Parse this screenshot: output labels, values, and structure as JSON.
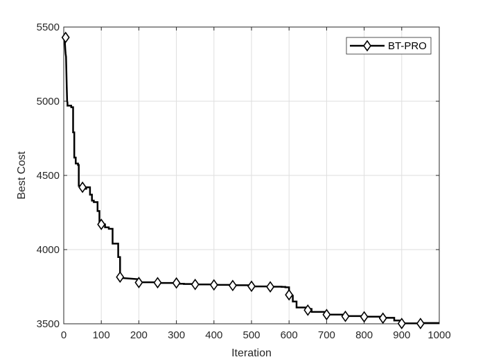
{
  "chart_data": {
    "type": "line",
    "title": "",
    "xlabel": "Iteration",
    "ylabel": "Best Cost",
    "xlim": [
      0,
      1000
    ],
    "ylim": [
      3500,
      5500
    ],
    "xticks": [
      0,
      100,
      200,
      300,
      400,
      500,
      600,
      700,
      800,
      900,
      1000
    ],
    "yticks": [
      3500,
      4000,
      4500,
      5000,
      5500
    ],
    "grid": true,
    "legend_position": "top-right",
    "colors": {
      "line": "#000000",
      "grid": "#dedede",
      "axes": "#262626",
      "background": "#ffffff"
    },
    "series": [
      {
        "name": "BT-PRO",
        "marker": "diamond",
        "x": [
          1,
          2,
          3,
          4,
          5,
          6,
          7,
          8,
          9,
          10,
          10,
          20,
          20,
          25,
          25,
          28,
          28,
          32,
          32,
          38,
          38,
          40,
          40,
          50,
          50,
          60,
          60,
          70,
          70,
          75,
          75,
          80,
          80,
          90,
          90,
          95,
          95,
          100,
          100,
          110,
          110,
          120,
          120,
          130,
          130,
          140,
          140,
          145,
          145,
          150,
          150,
          200,
          200,
          250,
          250,
          300,
          300,
          320,
          320,
          350,
          350,
          400,
          400,
          450,
          450,
          500,
          500,
          550,
          550,
          580,
          580,
          590,
          590,
          600,
          600,
          610,
          610,
          620,
          620,
          650,
          650,
          660,
          660,
          700,
          700,
          750,
          750,
          800,
          800,
          850,
          850,
          880,
          880,
          900,
          900,
          950,
          950,
          1000
        ],
        "y": [
          5430,
          5430,
          5400,
          5350,
          5320,
          5300,
          5200,
          5100,
          5000,
          4990,
          4970,
          4970,
          4960,
          4960,
          4790,
          4790,
          4620,
          4620,
          4580,
          4580,
          4570,
          4570,
          4430,
          4430,
          4410,
          4410,
          4420,
          4420,
          4370,
          4370,
          4330,
          4330,
          4320,
          4320,
          4260,
          4260,
          4180,
          4180,
          4170,
          4170,
          4150,
          4150,
          4140,
          4140,
          4040,
          4040,
          4040,
          4040,
          3950,
          3950,
          3810,
          3800,
          3780,
          3780,
          3775,
          3775,
          3770,
          3770,
          3768,
          3768,
          3765,
          3765,
          3762,
          3762,
          3760,
          3760,
          3752,
          3752,
          3750,
          3750,
          3749,
          3749,
          3746,
          3746,
          3700,
          3690,
          3650,
          3650,
          3610,
          3610,
          3600,
          3600,
          3580,
          3580,
          3562,
          3562,
          3552,
          3552,
          3548,
          3548,
          3540,
          3540,
          3522,
          3522,
          3503,
          3503,
          3505,
          3505
        ],
        "marker_x": [
          5,
          50,
          100,
          150,
          200,
          250,
          300,
          350,
          400,
          450,
          500,
          550,
          600,
          650,
          700,
          750,
          800,
          850,
          900,
          950
        ],
        "marker_y": [
          5430,
          4420,
          4170,
          3815,
          3778,
          3777,
          3775,
          3765,
          3762,
          3758,
          3753,
          3749,
          3695,
          3592,
          3562,
          3550,
          3547,
          3538,
          3502,
          3502
        ]
      }
    ]
  }
}
